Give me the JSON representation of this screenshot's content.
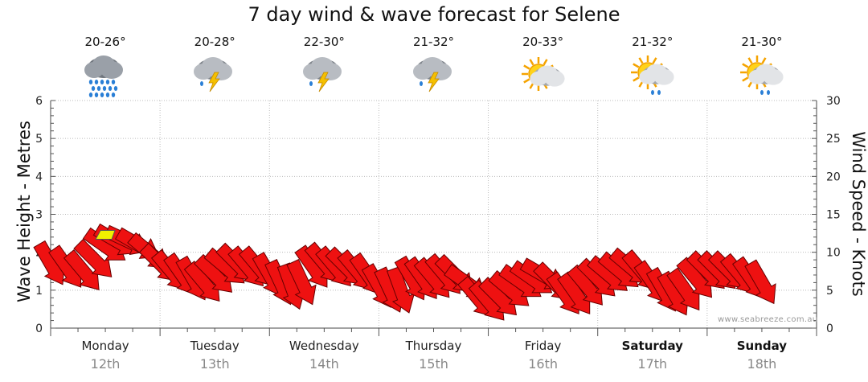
{
  "title": "7 day wind & wave forecast for Selene",
  "days": [
    {
      "name": "Monday",
      "date": "12th",
      "temp": "20-26°",
      "icon": "rain-cloud-icon",
      "weekend": false
    },
    {
      "name": "Tuesday",
      "date": "13th",
      "temp": "20-28°",
      "icon": "thunderstorm-icon",
      "weekend": false
    },
    {
      "name": "Wednesday",
      "date": "14th",
      "temp": "22-30°",
      "icon": "thunderstorm-icon",
      "weekend": false
    },
    {
      "name": "Thursday",
      "date": "15th",
      "temp": "21-32°",
      "icon": "thunderstorm-icon",
      "weekend": false
    },
    {
      "name": "Friday",
      "date": "16th",
      "temp": "20-33°",
      "icon": "partly-cloudy-icon",
      "weekend": false
    },
    {
      "name": "Saturday",
      "date": "17th",
      "temp": "21-32°",
      "icon": "sun-showers-icon",
      "weekend": true
    },
    {
      "name": "Sunday",
      "date": "18th",
      "temp": "21-30°",
      "icon": "sun-showers-icon",
      "weekend": true
    }
  ],
  "watermark": "www.seabreeze.com.au",
  "colors": {
    "wind_arrow": "#ee1111",
    "wave_marker": "#f0f000",
    "grid": "#bbbbbb"
  },
  "chart_data": {
    "type": "line",
    "xlabel": "",
    "ylabel_left": "Wave Height - Metres",
    "ylabel_right": "Wind Speed - Knots",
    "ylim_left": [
      0,
      6
    ],
    "ylim_right": [
      0,
      30
    ],
    "yticks_left": [
      "0",
      "1",
      "2",
      "3",
      "4",
      "5",
      "6"
    ],
    "yticks_right": [
      "0",
      "5",
      "10",
      "15",
      "20",
      "25",
      "30"
    ],
    "categories": [
      "Monday",
      "Tuesday",
      "Wednesday",
      "Thursday",
      "Friday",
      "Saturday",
      "Sunday"
    ],
    "grid": true,
    "wave_marker": {
      "day": 0.5,
      "height_m": 2.45
    },
    "series": [
      {
        "values": [
          [
            0.0,
            8.5,
            240
          ],
          [
            0.15,
            8.0,
            235
          ],
          [
            0.3,
            7.5,
            230
          ],
          [
            0.4,
            9.0,
            225
          ],
          [
            0.5,
            10.8,
            215
          ],
          [
            0.6,
            11.5,
            210
          ],
          [
            0.7,
            11.5,
            205
          ],
          [
            0.8,
            11.0,
            210
          ],
          [
            0.9,
            10.0,
            220
          ],
          [
            1.0,
            8.5,
            225
          ],
          [
            1.1,
            7.5,
            230
          ],
          [
            1.2,
            7.0,
            235
          ],
          [
            1.3,
            6.5,
            240
          ],
          [
            1.4,
            6.0,
            230
          ],
          [
            1.5,
            7.0,
            225
          ],
          [
            1.6,
            8.0,
            220
          ],
          [
            1.7,
            8.5,
            225
          ],
          [
            1.8,
            8.0,
            230
          ],
          [
            1.9,
            8.0,
            230
          ],
          [
            2.0,
            7.0,
            240
          ],
          [
            2.1,
            6.0,
            245
          ],
          [
            2.2,
            5.5,
            250
          ],
          [
            2.3,
            6.0,
            245
          ],
          [
            2.4,
            8.0,
            235
          ],
          [
            2.5,
            8.5,
            230
          ],
          [
            2.6,
            8.0,
            230
          ],
          [
            2.7,
            8.0,
            225
          ],
          [
            2.8,
            7.5,
            230
          ],
          [
            2.9,
            7.0,
            235
          ],
          [
            3.0,
            5.5,
            240
          ],
          [
            3.1,
            5.0,
            245
          ],
          [
            3.2,
            5.0,
            250
          ],
          [
            3.3,
            6.5,
            240
          ],
          [
            3.4,
            6.5,
            235
          ],
          [
            3.5,
            6.5,
            230
          ],
          [
            3.6,
            7.0,
            230
          ],
          [
            3.7,
            7.0,
            225
          ],
          [
            3.8,
            6.0,
            215
          ],
          [
            3.9,
            4.0,
            230
          ],
          [
            4.0,
            3.5,
            230
          ],
          [
            4.1,
            4.0,
            225
          ],
          [
            4.2,
            5.0,
            220
          ],
          [
            4.3,
            6.0,
            215
          ],
          [
            4.4,
            6.5,
            215
          ],
          [
            4.5,
            7.0,
            210
          ],
          [
            4.6,
            6.0,
            225
          ],
          [
            4.7,
            4.5,
            235
          ],
          [
            4.8,
            4.5,
            235
          ],
          [
            4.9,
            5.5,
            230
          ],
          [
            5.0,
            6.5,
            225
          ],
          [
            5.1,
            7.0,
            220
          ],
          [
            5.2,
            7.5,
            220
          ],
          [
            5.3,
            8.0,
            220
          ],
          [
            5.4,
            7.5,
            230
          ],
          [
            5.5,
            6.0,
            235
          ],
          [
            5.6,
            5.0,
            240
          ],
          [
            5.7,
            4.5,
            240
          ],
          [
            5.8,
            5.0,
            235
          ],
          [
            5.9,
            6.5,
            230
          ],
          [
            6.0,
            7.5,
            225
          ],
          [
            6.1,
            7.5,
            225
          ],
          [
            6.2,
            7.5,
            225
          ],
          [
            6.3,
            7.0,
            230
          ],
          [
            6.4,
            6.5,
            235
          ],
          [
            6.5,
            6.0,
            240
          ]
        ]
      }
    ]
  }
}
